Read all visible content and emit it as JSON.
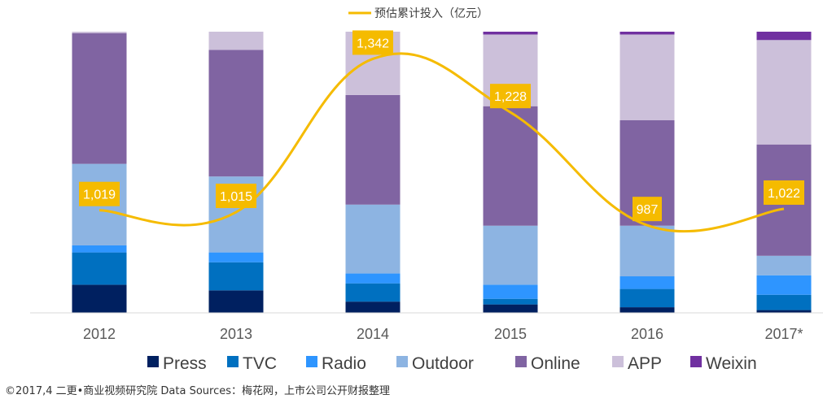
{
  "chart_data": {
    "type": "bar",
    "stacked": true,
    "normalized": true,
    "categories": [
      "2012",
      "2013",
      "2014",
      "2015",
      "2016",
      "2017*"
    ],
    "series": [
      {
        "name": "Press",
        "color": "#002060",
        "values": [
          10,
          8,
          4,
          3,
          2,
          1
        ]
      },
      {
        "name": "TVC",
        "color": "#0070c0",
        "values": [
          11.5,
          10,
          6.5,
          2,
          6.5,
          5.5
        ]
      },
      {
        "name": "Radio",
        "color": "#2e95ff",
        "values": [
          2.5,
          3.5,
          3.5,
          5,
          4.5,
          7
        ]
      },
      {
        "name": "Outdoor",
        "color": "#8db4e2",
        "values": [
          29,
          27,
          24.5,
          21,
          18,
          7
        ]
      },
      {
        "name": "Online",
        "color": "#8064a2",
        "values": [
          46.5,
          45,
          39,
          42.5,
          37.5,
          40
        ]
      },
      {
        "name": "APP",
        "color": "#ccc0da",
        "values": [
          0.5,
          6.5,
          22.5,
          25.5,
          30.5,
          37.5
        ]
      },
      {
        "name": "Weixin",
        "color": "#7030a0",
        "values": [
          0,
          0,
          0,
          1,
          1,
          3
        ]
      }
    ],
    "line": {
      "name": "预估累计投入（亿元）",
      "color": "#f5bb00",
      "values": [
        1019,
        1015,
        1342,
        1228,
        987,
        1022
      ],
      "labels": [
        "1,019",
        "1,015",
        "1,342",
        "1,228",
        "987",
        "1,022"
      ]
    },
    "line_ylim": [
      800,
      1400
    ],
    "ylim": [
      0,
      100
    ],
    "legend_position": "bottom",
    "grid": false
  },
  "footer": "©2017,4 二更•商业视频研究院  Data Sources：梅花网，上市公司公开财报整理"
}
